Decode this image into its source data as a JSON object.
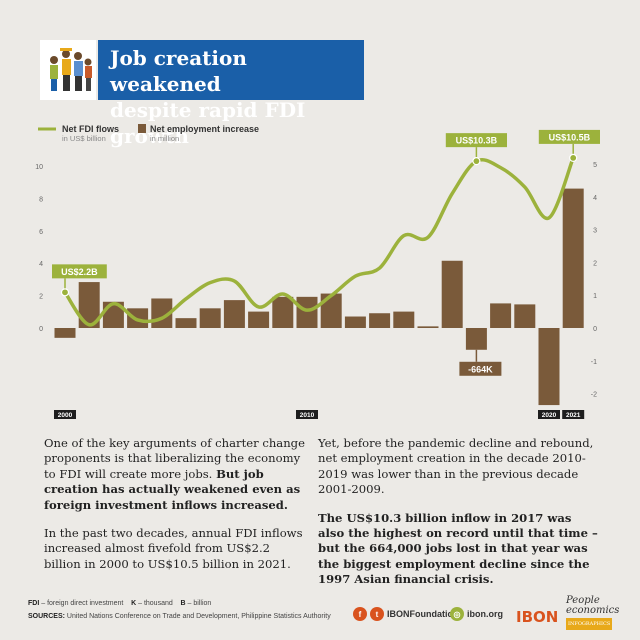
{
  "header": {
    "title_line1": "Job creation weakened",
    "title_line2": "despite rapid FDI growth"
  },
  "legend": {
    "fdi_title": "Net FDI flows",
    "fdi_sub": "in US$ billion",
    "emp_title": "Net employment increase",
    "emp_sub": "in million"
  },
  "colors": {
    "title_bg": "#1a5fa8",
    "fdi_line": "#9cb23c",
    "bars": "#7a5a3a",
    "callout_green": "#9cb23c",
    "callout_brown": "#7a5a3a",
    "background": "#eceae6",
    "accent_orange": "#d9531e"
  },
  "chart_data": {
    "type": "bar+line",
    "title": "Job creation weakened despite rapid FDI growth",
    "years": [
      "2000",
      "2001",
      "2002",
      "2003",
      "2004",
      "2005",
      "2006",
      "2007",
      "2008",
      "2009",
      "2010",
      "2011",
      "2012",
      "2013",
      "2014",
      "2015",
      "2016",
      "2017",
      "2018",
      "2019",
      "2020",
      "2021"
    ],
    "x_tick_labels": [
      "2000",
      "2010",
      "2020",
      "2021"
    ],
    "series": [
      {
        "name": "Net FDI flows",
        "unit": "US$ billion",
        "axis": "left",
        "type": "line",
        "values": [
          2.2,
          0.2,
          1.5,
          0.5,
          0.6,
          1.8,
          2.8,
          2.9,
          1.3,
          2.1,
          1.1,
          2.0,
          3.2,
          3.7,
          5.7,
          5.6,
          8.3,
          10.3,
          9.9,
          8.7,
          6.8,
          10.5
        ]
      },
      {
        "name": "Net employment increase",
        "unit": "million",
        "axis": "right",
        "type": "bar",
        "values": [
          -0.3,
          1.4,
          0.8,
          0.6,
          0.9,
          0.3,
          0.6,
          0.85,
          0.5,
          0.95,
          0.95,
          1.05,
          0.35,
          0.45,
          0.5,
          0.05,
          2.05,
          -0.664,
          0.75,
          0.72,
          -2.35,
          4.25
        ]
      }
    ],
    "y_left": {
      "min": -2,
      "max": 11,
      "ticks": [
        0,
        2,
        4,
        6,
        8,
        10
      ]
    },
    "y_right": {
      "min": -2,
      "max": 5,
      "ticks": [
        -2,
        -1,
        0,
        1,
        2,
        3,
        4,
        5
      ]
    },
    "annotations": [
      {
        "year": "2000",
        "label": "US$2.2B",
        "series": "Net FDI flows"
      },
      {
        "year": "2017",
        "label": "US$10.3B",
        "series": "Net FDI flows"
      },
      {
        "year": "2021",
        "label": "US$10.5B",
        "series": "Net FDI flows"
      },
      {
        "year": "2017",
        "label": "-664K",
        "series": "Net employment increase"
      }
    ]
  },
  "text": {
    "col1_p1_plain": "One of the key arguments of charter change proponents is that liberalizing the economy to FDI will create more jobs. ",
    "col1_p1_bold": "But job creation has actually weakened even as foreign investment inflows increased.",
    "col1_p2": "In the past two decades, annual FDI inflows increased almost fivefold from US$2.2 billion in 2000 to US$10.5 billion in 2021.",
    "col2_p1": "Yet, before the pandemic decline and rebound, net employment creation in the decade 2010-2019 was lower than in the previous decade 2001-2009.",
    "col2_p2": "The US$10.3 billion inflow in 2017 was also the highest on record until that time – but the 664,000 jobs lost in that year was the biggest employment decline since the 1997 Asian financial crisis."
  },
  "footer": {
    "abbr_fdi_key": "FDI",
    "abbr_fdi_val": " – foreign direct investment",
    "abbr_k_key": "K",
    "abbr_k_val": " – thousand",
    "abbr_b_key": "B",
    "abbr_b_val": " – billion",
    "sources_key": "SOURCES:",
    "sources_val": " United Nations Conference on Trade and Development, Philippine Statistics Authority",
    "social_handle": "IBONFoundation",
    "website": "ibon.org",
    "logo": "IBON",
    "brand_line1": "People",
    "brand_line2": "economics",
    "brand_tag": "INFOGRAPHICS",
    "icons": [
      "facebook-icon",
      "twitter-icon",
      "globe-icon"
    ]
  }
}
